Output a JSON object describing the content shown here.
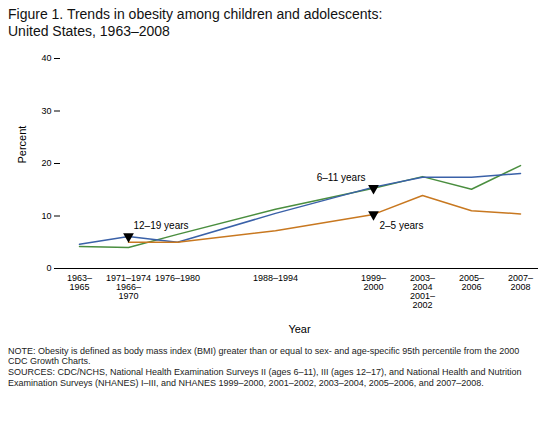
{
  "chart_data": {
    "type": "line",
    "title": "Figure 1. Trends in obesity among children and adolescents:\nUnited States, 1963–2008",
    "xlabel": "Year",
    "ylabel": "Percent",
    "categories": [
      "1963–\n1965",
      "1971–1974\n1966–\n1970",
      "1976–1980",
      null,
      "1988–1994",
      null,
      "1999–\n2000",
      "2003–\n2004\n2001–\n2002",
      "2005–\n2006",
      "2007–\n2008"
    ],
    "ylim": [
      0,
      40
    ],
    "yticks": [
      0,
      10,
      20,
      30,
      40
    ],
    "grid": false,
    "series": [
      {
        "name": "6–11 years",
        "color": "#4a8e3f",
        "values": [
          4.2,
          4.0,
          6.5,
          null,
          11.3,
          null,
          15.3,
          17.5,
          15.1,
          19.6
        ],
        "marker": "triangle-down",
        "marker_at": 6
      },
      {
        "name": "12–19 years",
        "color": "#3a61a8",
        "values": [
          4.6,
          6.1,
          5.0,
          null,
          10.5,
          null,
          15.5,
          17.4,
          17.4,
          18.1
        ],
        "marker": "triangle-down",
        "marker_at": 1
      },
      {
        "name": "2–5 years",
        "color": "#c87820",
        "values": [
          null,
          5.0,
          5.0,
          null,
          7.2,
          null,
          10.3,
          13.9,
          11.0,
          10.4
        ],
        "marker": "triangle-down",
        "marker_at": 6
      }
    ],
    "caption": "NOTE: Obesity is defined as body mass index (BMI) greater than or equal to sex- and age-specific 95th percentile from the 2000\nCDC Growth Charts.\nSOURCES: CDC/NCHS, National Health Examination Surveys II (ages 6–11), III (ages 12–17), and National Health and Nutrition\nExamination Surveys (NHANES) I–III, and NHANES 1999–2000, 2001–2002, 2003–2004, 2005–2006, and 2007–2008."
  }
}
